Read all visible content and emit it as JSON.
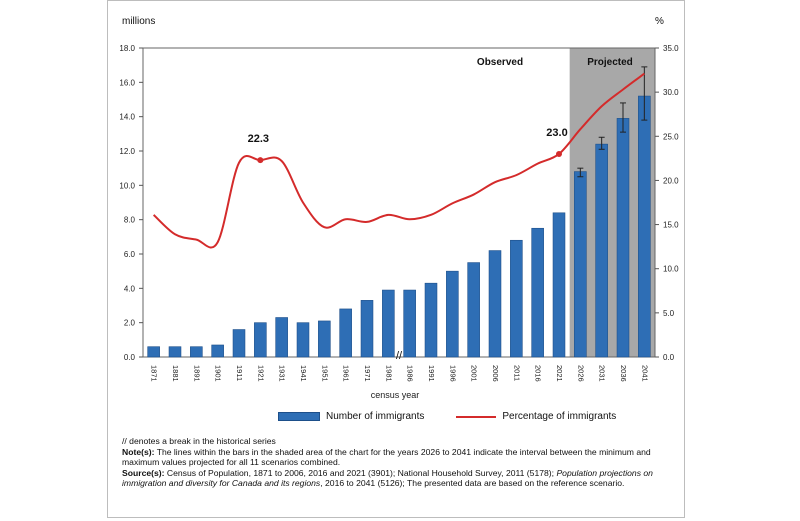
{
  "chart_data": {
    "type": "bar",
    "left_axis_unit": "millions",
    "right_axis_unit": "%",
    "xlabel": "census year",
    "region_labels": {
      "observed": "Observed",
      "projected": "Projected"
    },
    "categories": [
      "1871",
      "1881",
      "1891",
      "1901",
      "1911",
      "1921",
      "1931",
      "1941",
      "1951",
      "1961",
      "1971",
      "1981",
      "1986",
      "1991",
      "1996",
      "2001",
      "2006",
      "2011",
      "2016",
      "2021",
      "2026",
      "2031",
      "2036",
      "2041"
    ],
    "left_ticks": [
      "0.0",
      "2.0",
      "4.0",
      "6.0",
      "8.0",
      "10.0",
      "12.0",
      "14.0",
      "16.0",
      "18.0"
    ],
    "right_ticks": [
      "0.0",
      "5.0",
      "10.0",
      "15.0",
      "20.0",
      "25.0",
      "30.0",
      "35.0"
    ],
    "ylim_left": [
      0,
      18
    ],
    "ylim_right": [
      0,
      35
    ],
    "projected_from_index": 20,
    "series": [
      {
        "name": "Number of immigrants",
        "type": "bar",
        "axis": "left",
        "color": "#2e6eb5",
        "values": [
          0.6,
          0.6,
          0.6,
          0.7,
          1.6,
          2.0,
          2.3,
          2.0,
          2.1,
          2.8,
          3.3,
          3.9,
          3.9,
          4.3,
          5.0,
          5.5,
          6.2,
          6.8,
          7.5,
          8.4,
          10.8,
          12.4,
          13.9,
          15.2
        ],
        "ranges": [
          null,
          null,
          null,
          null,
          null,
          null,
          null,
          null,
          null,
          null,
          null,
          null,
          null,
          null,
          null,
          null,
          null,
          null,
          null,
          null,
          [
            10.5,
            11.0
          ],
          [
            12.1,
            12.8
          ],
          [
            13.1,
            14.8
          ],
          [
            13.8,
            16.9
          ]
        ]
      },
      {
        "name": "Percentage of immigrants",
        "type": "line",
        "axis": "right",
        "color": "#d42b2b",
        "values": [
          16.1,
          13.9,
          13.3,
          13.0,
          22.0,
          22.3,
          22.2,
          17.5,
          14.7,
          15.6,
          15.3,
          16.1,
          15.6,
          16.1,
          17.4,
          18.4,
          19.8,
          20.6,
          21.9,
          23.0,
          25.8,
          28.4,
          30.3,
          32.1
        ]
      }
    ],
    "annotations": [
      {
        "text": "22.3",
        "series": "Percentage of immigrants",
        "category": "1921"
      },
      {
        "text": "23.0",
        "series": "Percentage of immigrants",
        "category": "2021"
      }
    ],
    "break_marker": {
      "text": "//",
      "between": [
        "1981",
        "1986"
      ]
    },
    "legend": {
      "placement": "bottom",
      "bar_label": "Number of immigrants",
      "line_label": "Percentage of immigrants"
    }
  },
  "notes": {
    "break_text": "// denotes a break in the historical series",
    "note_label": "Note(s):",
    "note_text": " The lines within the bars in the shaded area of the chart for the years 2026 to 2041 indicate the interval between the minimum and maximum values projected for all 11 scenarios combined.",
    "source_label": "Source(s):",
    "source_text": " Census of Population, 1871 to 2006, 2016 and 2021 (3901); National Household Survey, 2011 (5178);",
    "source_italic": "Population projections on immigration and diversity for Canada and its regions",
    "source_tail": ", 2016 to 2041 (5126); The presented data are based on the reference scenario."
  }
}
